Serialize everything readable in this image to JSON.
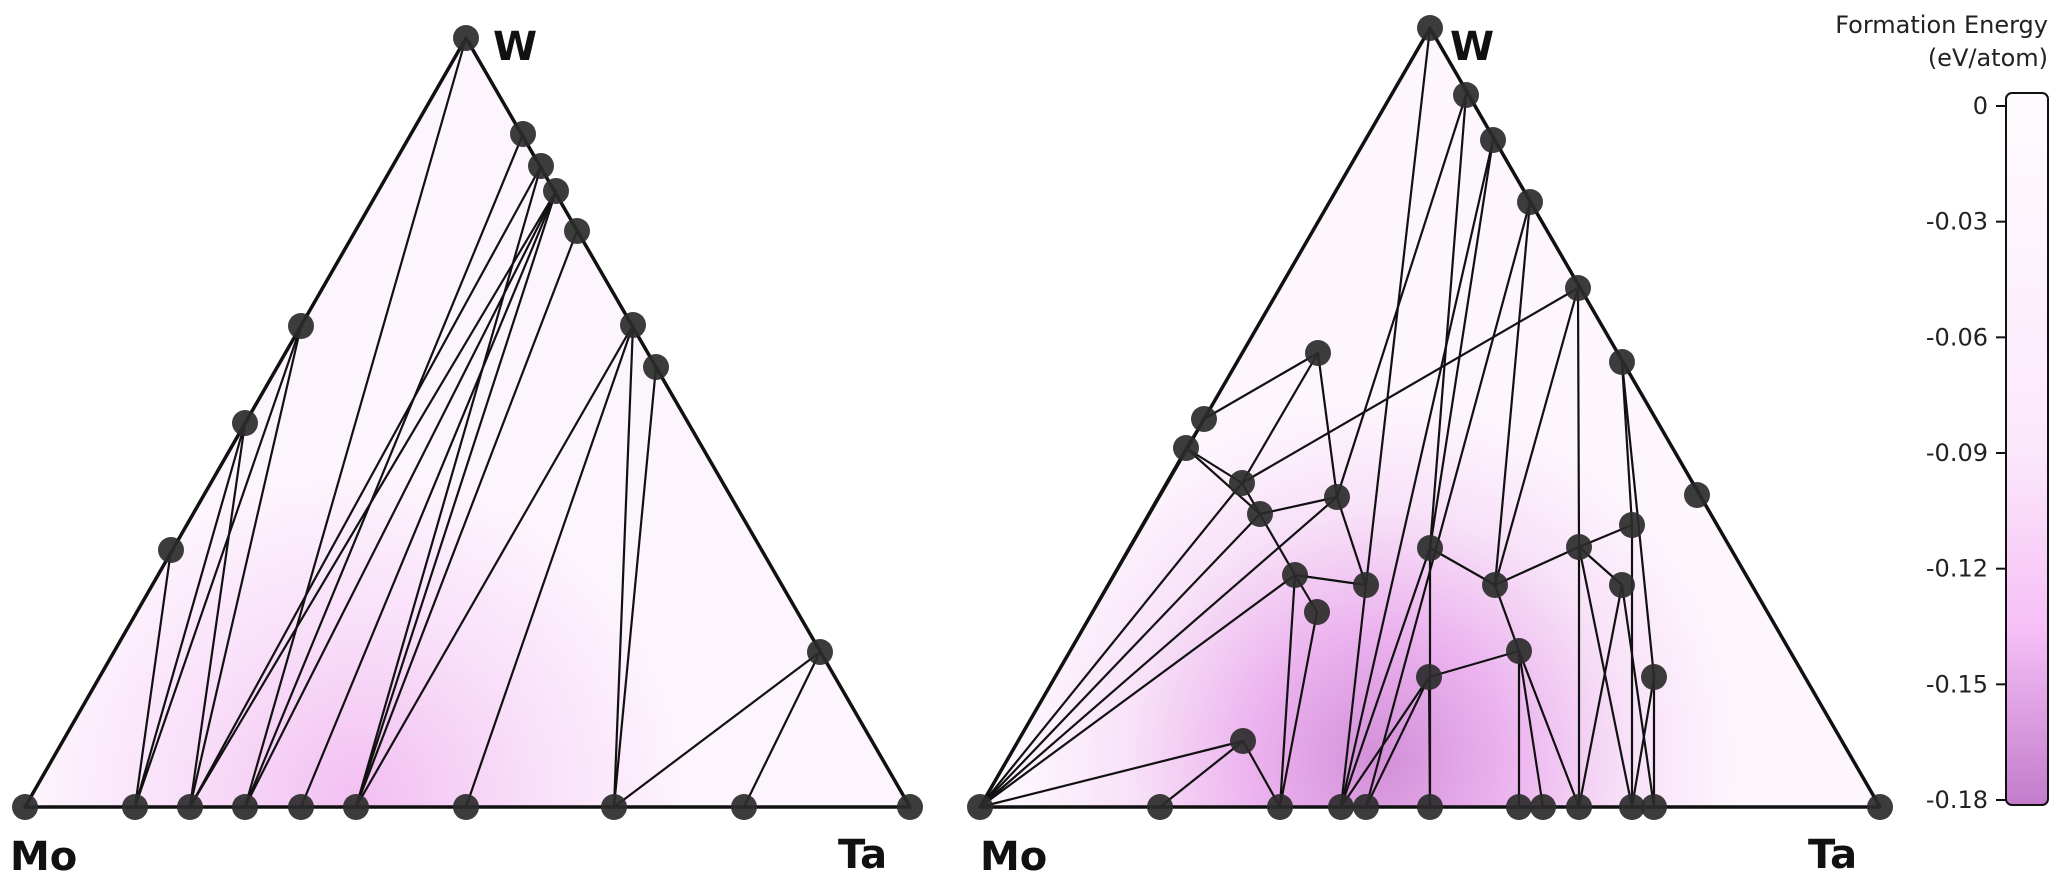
{
  "colorbar": {
    "title_line1": "Formation Energy",
    "title_line2": "(eV/atom)",
    "min": -0.18,
    "max": 0,
    "ticks": [
      "0",
      "-0.03",
      "-0.06",
      "-0.09",
      "-0.12",
      "-0.15",
      "-0.18"
    ],
    "colors": {
      "top": "#fefcfe",
      "mid": "#f6c0f6",
      "bottom": "#c37ccc"
    }
  },
  "panels": [
    {
      "id": "left",
      "corner_labels": {
        "top": "W",
        "left": "Mo",
        "right": "Ta"
      },
      "node_color": "#2b2b2b",
      "edge_color": "#111111"
    },
    {
      "id": "right",
      "corner_labels": {
        "top": "W",
        "left": "Mo",
        "right": "Ta"
      },
      "node_color": "#2b2b2b",
      "edge_color": "#111111"
    }
  ]
}
